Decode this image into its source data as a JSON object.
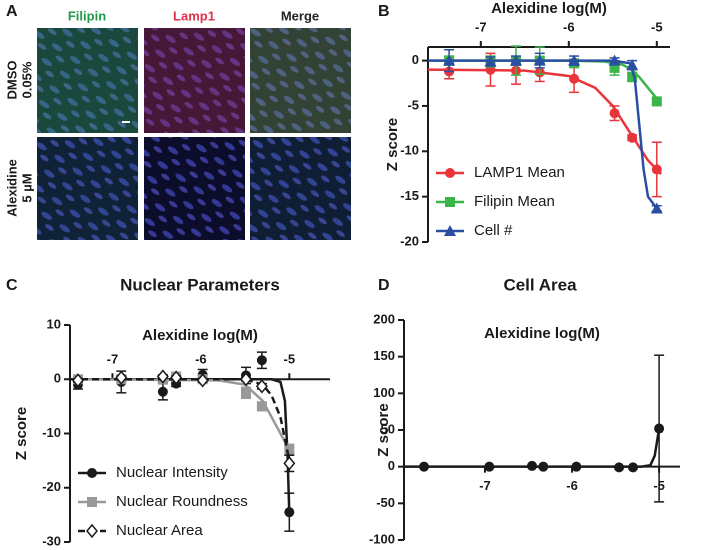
{
  "panel_a": {
    "label": "A",
    "columns": [
      "Filipin",
      "Lamp1",
      "Merge"
    ],
    "column_colors": [
      "#1f9b4a",
      "#e0304a",
      "#222222"
    ],
    "rows": [
      [
        "DMSO",
        "0.05%"
      ],
      [
        "Alexidine",
        "5 µM"
      ]
    ]
  },
  "chart_data": [
    {
      "type": "line",
      "panel_label": "B",
      "xlabel": "Alexidine log(M)",
      "ylabel": "Z score",
      "x": [
        -7.36,
        -6.89,
        -6.6,
        -6.33,
        -5.94,
        -5.48,
        -5.28,
        -5.0
      ],
      "xlim": [
        -7.6,
        -4.85
      ],
      "xticks": [
        -7,
        -6,
        -5
      ],
      "ylim": [
        -20,
        1.5
      ],
      "yticks": [
        0,
        -5,
        -10,
        -15,
        -20
      ],
      "grid": false,
      "legend": "lower left",
      "xaxis_position": "top",
      "series": [
        {
          "name": "LAMP1 Mean",
          "color": "#e8343a",
          "marker": "circle",
          "values": [
            -1.2,
            -1.0,
            -1.1,
            -1.3,
            -2.0,
            -5.8,
            -8.5,
            -12.0
          ],
          "errors": [
            0.8,
            1.8,
            1.5,
            1.0,
            1.5,
            0.8,
            0.3,
            3.0
          ],
          "fit_x": [
            -7.6,
            -6.5,
            -6.0,
            -5.7,
            -5.5,
            -5.3,
            -5.1,
            -4.95
          ],
          "fit_values": [
            -1.0,
            -1.1,
            -1.7,
            -3.0,
            -5.0,
            -8.0,
            -11.0,
            -12.5
          ]
        },
        {
          "name": "Filipin Mean",
          "color": "#3ab54a",
          "marker": "square",
          "values": [
            0,
            -0.1,
            0,
            0,
            -0.3,
            -0.8,
            -1.8,
            -4.5
          ],
          "errors": [
            0.5,
            0.6,
            1.6,
            1.5,
            0.3,
            0.8,
            0.5,
            0.3
          ],
          "fit_x": [
            -7.6,
            -6.0,
            -5.6,
            -5.4,
            -5.3,
            -5.2,
            -5.1,
            -5.0
          ],
          "fit_values": [
            0,
            0,
            -0.1,
            -0.4,
            -0.9,
            -1.8,
            -3.0,
            -4.2
          ]
        },
        {
          "name": "Cell #",
          "color": "#2a4ea3",
          "marker": "triangle",
          "values": [
            0,
            -0.1,
            0,
            0,
            0,
            0,
            -0.5,
            -16.3
          ],
          "errors": [
            1.2,
            0.5,
            0.5,
            0.8,
            0.5,
            0.3,
            0.5,
            0.3
          ],
          "fit_x": [
            -7.6,
            -5.5,
            -5.3,
            -5.25,
            -5.2,
            -5.15,
            -5.1,
            -5.0
          ],
          "fit_values": [
            0,
            0,
            -0.3,
            -2.0,
            -7.0,
            -12.0,
            -15.0,
            -16.3
          ]
        }
      ]
    },
    {
      "type": "line",
      "panel_label": "C",
      "title": "Nuclear Parameters",
      "xlabel": "Alexidine log(M)",
      "ylabel": "Z score",
      "x": [
        -7.39,
        -6.9,
        -6.43,
        -6.28,
        -5.98,
        -5.49,
        -5.31,
        -5.0
      ],
      "xlim": [
        -7.48,
        -4.54
      ],
      "xticks": [
        -7,
        -6,
        -5
      ],
      "ylim": [
        -30,
        10
      ],
      "yticks": [
        10,
        0,
        -10,
        -20,
        -30
      ],
      "grid": false,
      "legend": "lower left",
      "xaxis_position": "zero-above",
      "series": [
        {
          "name": "Nuclear Intensity",
          "color": "#1a1a1a",
          "marker": "circle",
          "values": [
            -1.0,
            -0.5,
            -2.3,
            -0.8,
            0.8,
            0.7,
            3.5,
            -24.5
          ],
          "errors": [
            0.8,
            2.0,
            1.5,
            0.5,
            1.0,
            1.5,
            1.5,
            3.5
          ],
          "fit_x": [
            -7.48,
            -5.2,
            -5.1,
            -5.05,
            -5.02,
            -5.0
          ],
          "fit_values": [
            0,
            0,
            -0.5,
            -4.0,
            -14.0,
            -25.0
          ]
        },
        {
          "name": "Nuclear Roundness",
          "color": "#999999",
          "marker": "square",
          "values": [
            0,
            0,
            0,
            0.5,
            0,
            -2.5,
            -5.0,
            -13.0
          ],
          "errors": [
            0.3,
            0.3,
            0.3,
            0.3,
            0.3,
            1.0,
            0.8,
            1.0
          ],
          "fit_x": [
            -7.48,
            -5.8,
            -5.5,
            -5.3,
            -5.1,
            -5.0
          ],
          "fit_values": [
            0,
            -0.2,
            -1.0,
            -4.0,
            -10.0,
            -13.0
          ]
        },
        {
          "name": "Nuclear Area",
          "color": "#1a1a1a",
          "marker": "diamond",
          "dashed": true,
          "values": [
            -0.2,
            0.3,
            0.5,
            0.3,
            -0.2,
            0,
            -1.3,
            -15.5
          ],
          "errors": [
            0.3,
            0.3,
            0.3,
            0.3,
            0.3,
            0.3,
            0.5,
            1.5
          ],
          "fit_x": [
            -7.48,
            -5.5,
            -5.3,
            -5.2,
            -5.1,
            -5.0
          ],
          "fit_values": [
            0,
            0,
            -1.0,
            -3.0,
            -7.0,
            -15.0
          ]
        }
      ]
    },
    {
      "type": "line",
      "panel_label": "D",
      "title": "Cell Area",
      "xlabel": "Alexidine log(M)",
      "ylabel": "Z score",
      "x": [
        -7.7,
        -6.95,
        -6.46,
        -6.33,
        -5.95,
        -5.46,
        -5.3,
        -5.0
      ],
      "xlim": [
        -7.93,
        -4.76
      ],
      "xticks": [
        -7,
        -6,
        -5
      ],
      "ylim": [
        -100,
        200
      ],
      "yticks": [
        200,
        150,
        100,
        50,
        0,
        -50,
        -100
      ],
      "grid": false,
      "xaxis_position": "zero-below",
      "series": [
        {
          "color": "#1a1a1a",
          "marker": "circle",
          "values": [
            0,
            0,
            1,
            0,
            0,
            -1,
            -1,
            52
          ],
          "errors": [
            null,
            null,
            null,
            null,
            null,
            null,
            null,
            100
          ],
          "fit_x": [
            -7.93,
            -5.2,
            -5.1,
            -5.05,
            -5.0
          ],
          "fit_values": [
            0,
            0,
            2,
            15,
            52
          ]
        }
      ]
    }
  ]
}
